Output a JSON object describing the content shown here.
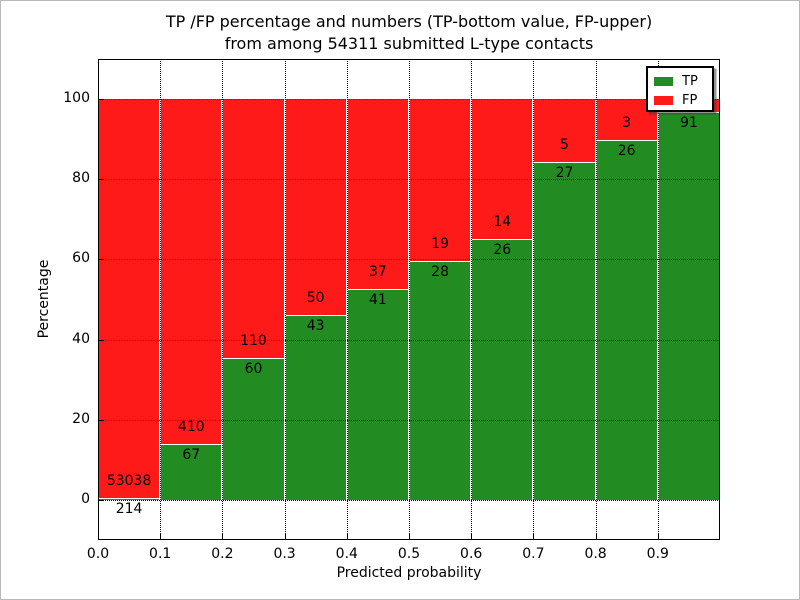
{
  "figure": {
    "title_line1": "TP /FP percentage and numbers (TP-bottom value, FP-upper)",
    "title_line2": "from among 54311 submitted L-type contacts"
  },
  "chart_data": {
    "type": "bar",
    "stacked": true,
    "title": "TP /FP percentage and numbers (TP-bottom value, FP-upper) from among 54311 submitted L-type contacts",
    "xlabel": "Predicted probability",
    "ylabel": "Percentage",
    "xlim": [
      0.0,
      1.0
    ],
    "ylim": [
      -10,
      110
    ],
    "xtick_labels": [
      "0.0",
      "0.1",
      "0.2",
      "0.3",
      "0.4",
      "0.5",
      "0.6",
      "0.7",
      "0.8",
      "0.9"
    ],
    "xtick_values": [
      0.0,
      0.1,
      0.2,
      0.3,
      0.4,
      0.5,
      0.6,
      0.7,
      0.8,
      0.9
    ],
    "ytick_values": [
      0,
      20,
      40,
      60,
      80,
      100
    ],
    "grid": "dotted black, both axes",
    "bin_width": 0.1,
    "colors": {
      "tp": "#228B22",
      "fp": "#ff1a1a"
    },
    "legend": {
      "position": "upper right",
      "entries": [
        {
          "label": "TP",
          "color": "#228B22"
        },
        {
          "label": "FP",
          "color": "#ff1a1a"
        }
      ]
    },
    "bins": [
      {
        "x_start": 0.0,
        "x_end": 0.1,
        "tp_count": 214,
        "fp_count": 53038,
        "tp_pct": 0.4,
        "fp_pct": 99.6
      },
      {
        "x_start": 0.1,
        "x_end": 0.2,
        "tp_count": 67,
        "fp_count": 410,
        "tp_pct": 14.0,
        "fp_pct": 86.0
      },
      {
        "x_start": 0.2,
        "x_end": 0.3,
        "tp_count": 60,
        "fp_count": 110,
        "tp_pct": 35.3,
        "fp_pct": 64.7
      },
      {
        "x_start": 0.3,
        "x_end": 0.4,
        "tp_count": 43,
        "fp_count": 50,
        "tp_pct": 46.2,
        "fp_pct": 53.8
      },
      {
        "x_start": 0.4,
        "x_end": 0.5,
        "tp_count": 41,
        "fp_count": 37,
        "tp_pct": 52.6,
        "fp_pct": 47.4
      },
      {
        "x_start": 0.5,
        "x_end": 0.6,
        "tp_count": 28,
        "fp_count": 19,
        "tp_pct": 59.6,
        "fp_pct": 40.4
      },
      {
        "x_start": 0.6,
        "x_end": 0.7,
        "tp_count": 26,
        "fp_count": 14,
        "tp_pct": 65.0,
        "fp_pct": 35.0
      },
      {
        "x_start": 0.7,
        "x_end": 0.8,
        "tp_count": 27,
        "fp_count": 5,
        "tp_pct": 84.4,
        "fp_pct": 15.6
      },
      {
        "x_start": 0.8,
        "x_end": 0.9,
        "tp_count": 26,
        "fp_count": 3,
        "tp_pct": 89.7,
        "fp_pct": 10.3
      },
      {
        "x_start": 0.9,
        "x_end": 1.0,
        "tp_count": 91,
        "fp_count": null,
        "tp_pct": 96.8,
        "fp_pct": 3.2
      }
    ]
  }
}
